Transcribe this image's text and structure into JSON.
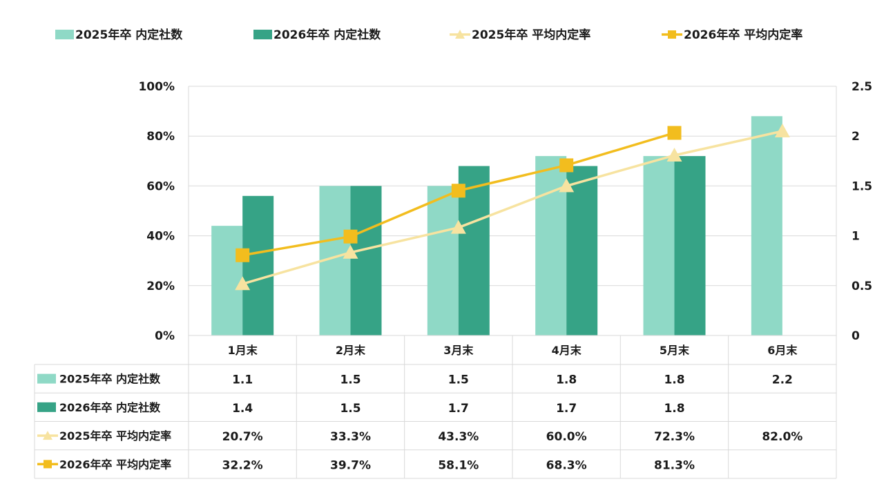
{
  "chart_data": {
    "type": "bar",
    "title": "",
    "xlabel": "",
    "ylabel_left": "",
    "ylabel_right": "",
    "categories": [
      "1月末",
      "2月末",
      "3月末",
      "4月末",
      "5月末",
      "6月末"
    ],
    "left_axis": {
      "min": 0,
      "max": 1.0,
      "step": 0.2,
      "tick_labels": [
        "0%",
        "20%",
        "40%",
        "60%",
        "80%",
        "100%"
      ]
    },
    "right_axis": {
      "min": 0,
      "max": 2.5,
      "step": 0.5,
      "tick_labels": [
        "0",
        "0.5",
        "1",
        "1.5",
        "2",
        "2.5"
      ]
    },
    "grid": true,
    "legend_position": "top",
    "series": [
      {
        "name": "2025年卒 内定社数",
        "type": "bar",
        "axis": "right",
        "color": "#8fd9c6",
        "values": [
          1.1,
          1.5,
          1.5,
          1.8,
          1.8,
          2.2
        ],
        "labels": [
          "1.1",
          "1.5",
          "1.5",
          "1.8",
          "1.8",
          "2.2"
        ]
      },
      {
        "name": "2026年卒 内定社数",
        "type": "bar",
        "axis": "right",
        "color": "#36a386",
        "values": [
          1.4,
          1.5,
          1.7,
          1.7,
          1.8,
          null
        ],
        "labels": [
          "1.4",
          "1.5",
          "1.7",
          "1.7",
          "1.8",
          ""
        ]
      },
      {
        "name": "2025年卒 平均内定率",
        "type": "line",
        "axis": "left",
        "color": "#f7e3a0",
        "marker": "triangle",
        "values": [
          0.207,
          0.333,
          0.433,
          0.6,
          0.723,
          0.82
        ],
        "labels": [
          "20.7%",
          "33.3%",
          "43.3%",
          "60.0%",
          "72.3%",
          "82.0%"
        ]
      },
      {
        "name": "2026年卒 平均内定率",
        "type": "line",
        "axis": "left",
        "color": "#f2bd1e",
        "marker": "square",
        "values": [
          0.322,
          0.397,
          0.581,
          0.683,
          0.813,
          null
        ],
        "labels": [
          "32.2%",
          "39.7%",
          "58.1%",
          "68.3%",
          "81.3%",
          ""
        ]
      }
    ]
  },
  "styles": {
    "grid_color": "#d9d9d9",
    "table_border_color": "#d9d9d9"
  }
}
